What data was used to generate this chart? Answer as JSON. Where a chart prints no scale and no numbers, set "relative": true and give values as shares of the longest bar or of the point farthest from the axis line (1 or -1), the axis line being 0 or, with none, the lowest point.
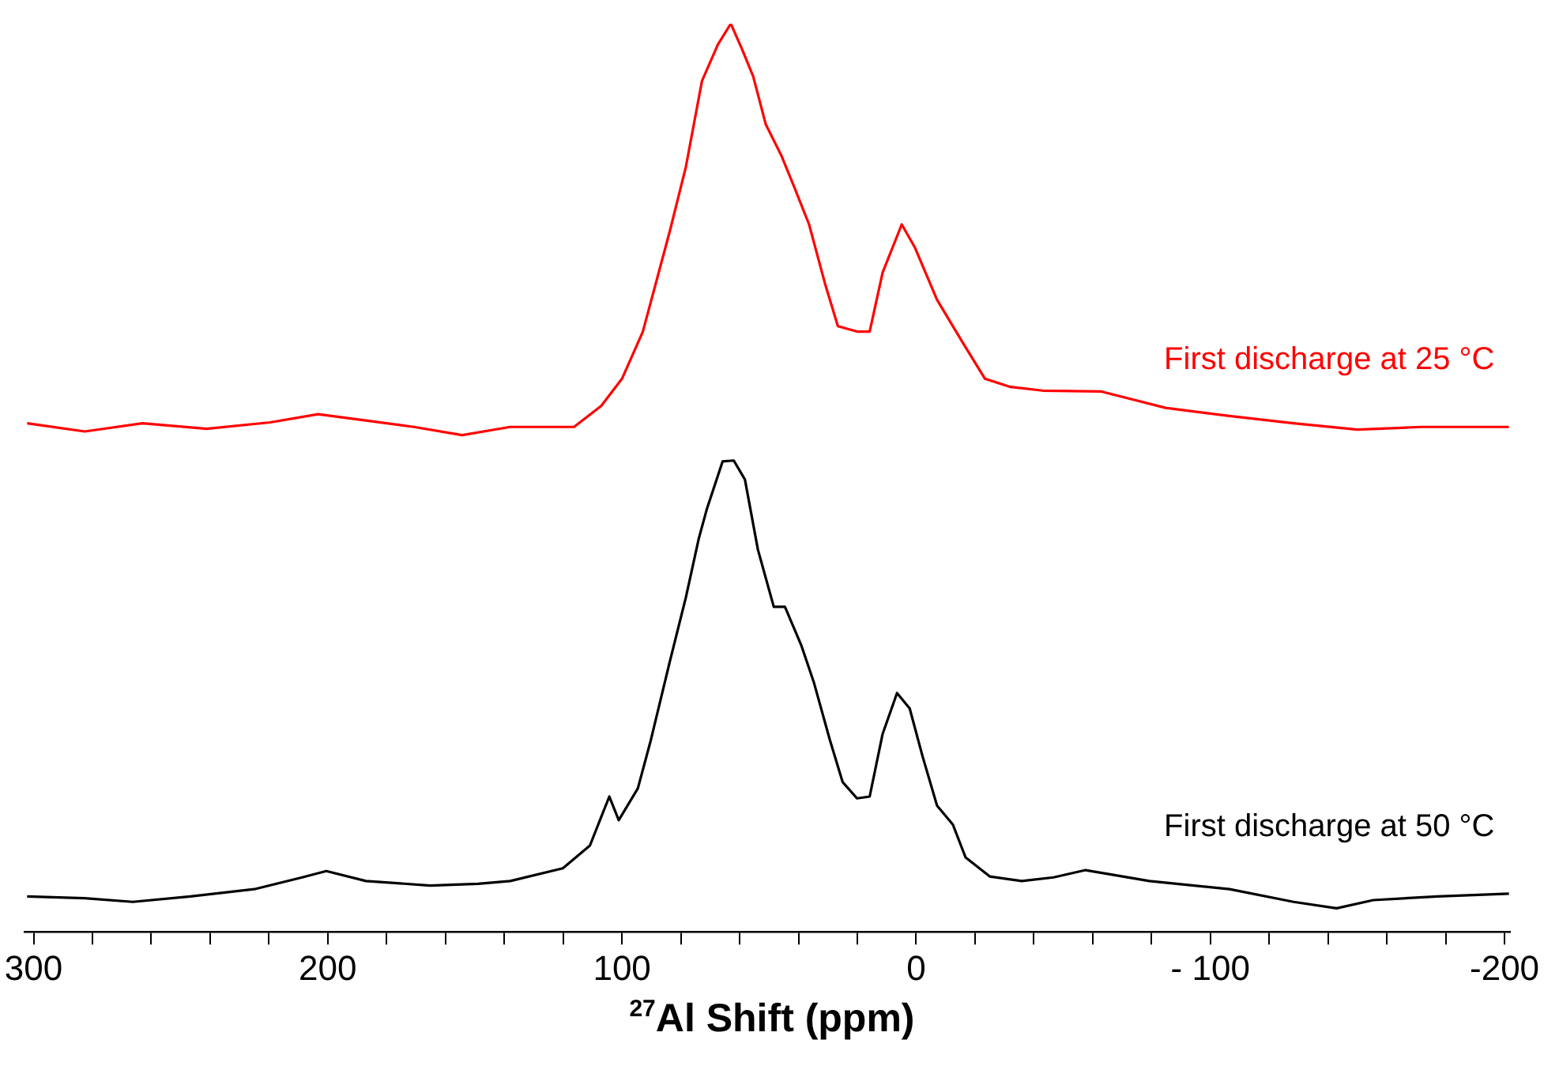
{
  "chart_data": {
    "type": "line",
    "xlabel": "$^{27}$Al Shift (ppm)",
    "relative": true,
    "legend": false,
    "grid": false,
    "marker": "none",
    "line_style": "solid",
    "tick_labels": "x",
    "xlim": [
      303,
      -202
    ],
    "xticks": [
      300,
      {
        "value": 280,
        "label": null
      },
      {
        "value": 260,
        "label": null
      },
      {
        "value": 240,
        "label": null
      },
      {
        "value": 220,
        "label": null
      },
      200,
      {
        "value": 180,
        "label": null
      },
      {
        "value": 160,
        "label": null
      },
      {
        "value": 140,
        "label": null
      },
      {
        "value": 120,
        "label": null
      },
      100,
      {
        "value": 80,
        "label": null
      },
      {
        "value": 60,
        "label": null
      },
      {
        "value": 40,
        "label": null
      },
      {
        "value": 20,
        "label": null
      },
      0,
      {
        "value": -20,
        "label": null
      },
      {
        "value": -40,
        "label": null
      },
      {
        "value": -60,
        "label": null
      },
      {
        "value": -80,
        "label": null
      },
      {
        "value": -100,
        "label": "- 100"
      },
      {
        "value": -120,
        "label": null
      },
      {
        "value": -140,
        "label": null
      },
      {
        "value": -160,
        "label": null
      },
      {
        "value": -180,
        "label": null
      },
      -200
    ],
    "series": [
      {
        "name": "First discharge at 25 °C",
        "color": "#ff0000",
        "x": [
          302.2,
          282.6,
          263.0,
          241.3,
          219.6,
          203.3,
          187.0,
          170.7,
          154.3,
          138.0,
          116.3,
          107.1,
          100.0,
          92.9,
          83.7,
          78.3,
          72.8,
          67.4,
          63.0,
          59.2,
          55.4,
          51.1,
          45.7,
          41.3,
          36.4,
          31.0,
          26.6,
          20.1,
          15.8,
          11.4,
          4.9,
          0.5,
          -7.1,
          -15.8,
          -23.4,
          -32.1,
          -43.0,
          -63.0,
          -84.8,
          -106.5,
          -128.3,
          -150.0,
          -171.7,
          -201.5
        ],
        "values": [
          0.56,
          0.551,
          0.56,
          0.554,
          0.561,
          0.57,
          0.563,
          0.556,
          0.547,
          0.556,
          0.556,
          0.579,
          0.609,
          0.661,
          0.772,
          0.842,
          0.937,
          0.977,
          1.0,
          0.972,
          0.942,
          0.889,
          0.854,
          0.819,
          0.779,
          0.714,
          0.667,
          0.661,
          0.661,
          0.726,
          0.779,
          0.754,
          0.696,
          0.649,
          0.609,
          0.6,
          0.596,
          0.595,
          0.577,
          0.568,
          0.56,
          0.553,
          0.556,
          0.556
        ]
      },
      {
        "name": "First discharge at 50 °C",
        "color": "#000000",
        "x": [
          302.2,
          282.6,
          266.3,
          246.7,
          225.0,
          208.7,
          200.5,
          187.0,
          165.2,
          148.9,
          138.0,
          120.1,
          110.9,
          104.3,
          101.1,
          94.6,
          90.2,
          83.7,
          78.3,
          73.9,
          71.2,
          65.8,
          62.0,
          58.2,
          53.8,
          48.4,
          44.6,
          39.1,
          34.8,
          29.3,
          25.0,
          20.1,
          15.8,
          11.4,
          6.5,
          2.2,
          -2.2,
          -7.1,
          -12.5,
          -16.8,
          -25.0,
          -35.9,
          -46.7,
          -57.6,
          -79.3,
          -106.5,
          -128.3,
          -142.9,
          -155.4,
          -177.2,
          -201.5
        ],
        "values": [
          0.039,
          0.037,
          0.033,
          0.039,
          0.047,
          0.06,
          0.067,
          0.056,
          0.051,
          0.053,
          0.056,
          0.07,
          0.095,
          0.149,
          0.123,
          0.158,
          0.211,
          0.298,
          0.368,
          0.433,
          0.465,
          0.518,
          0.519,
          0.498,
          0.421,
          0.358,
          0.358,
          0.316,
          0.275,
          0.211,
          0.165,
          0.147,
          0.149,
          0.218,
          0.263,
          0.246,
          0.193,
          0.139,
          0.118,
          0.082,
          0.061,
          0.056,
          0.06,
          0.068,
          0.056,
          0.047,
          0.033,
          0.026,
          0.035,
          0.039,
          0.042
        ]
      }
    ]
  }
}
